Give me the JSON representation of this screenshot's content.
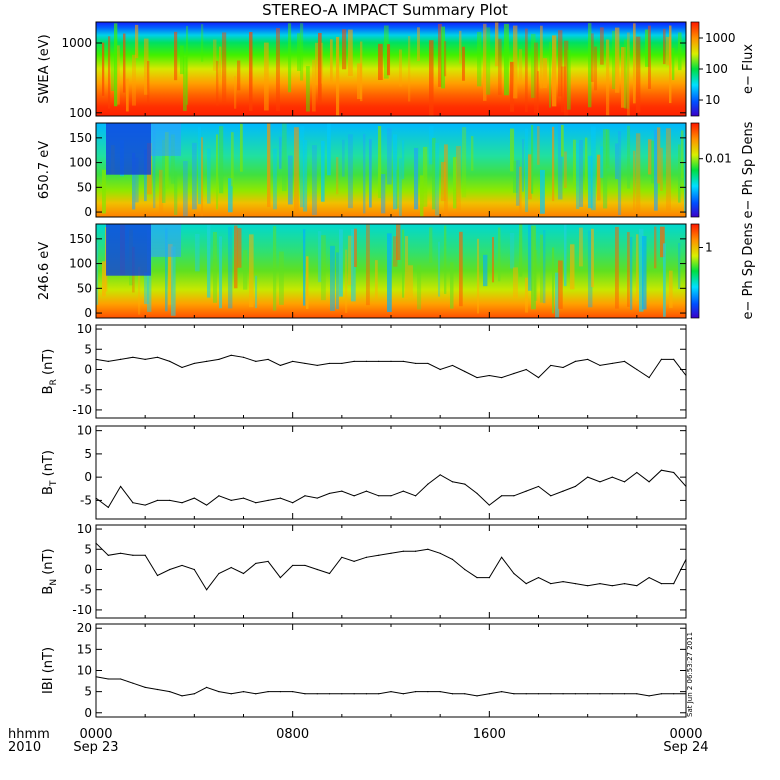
{
  "title": "STEREO-A IMPACT Summary Plot",
  "footer": {
    "time_label": "hhmm",
    "year_label": "2010",
    "x_ticks": [
      "0000",
      "0800",
      "1600",
      "0000"
    ],
    "x_dates": [
      "Sep 23",
      "",
      "",
      "Sep 24"
    ],
    "timestamp": "Sat Jun  2 06:53:27 2011"
  },
  "colors": {
    "line": "#000000",
    "frame": "#000000",
    "background": "#ffffff"
  },
  "chart_data": [
    {
      "type": "heatmap",
      "ylabel": "SWEA (eV)",
      "colorbar_label": "e− Flux",
      "y_scale": "log",
      "ylim": [
        90,
        2000
      ],
      "y_ticks": [
        {
          "v": 100,
          "label": "100"
        },
        {
          "v": 1000,
          "label": "1000"
        }
      ],
      "colorbar_ticks": [
        "10",
        "100",
        "1000"
      ],
      "colorbar_ticks_pos": [
        0.17,
        0.5,
        0.83
      ],
      "description_bands": [
        {
          "energy": 1800,
          "flux_level": 0.15
        },
        {
          "energy": 1000,
          "flux_level": 0.32
        },
        {
          "energy": 500,
          "flux_level": 0.55
        },
        {
          "energy": 250,
          "flux_level": 0.75
        },
        {
          "energy": 100,
          "flux_level": 0.92
        }
      ]
    },
    {
      "type": "heatmap",
      "ylabel": "650.7 eV",
      "colorbar_label": "e− Ph Sp Dens",
      "ylim": [
        -10,
        180
      ],
      "y_ticks": [
        {
          "v": 0,
          "label": "0"
        },
        {
          "v": 50,
          "label": "50"
        },
        {
          "v": 100,
          "label": "100"
        },
        {
          "v": 150,
          "label": "150"
        }
      ],
      "colorbar_ticks": [
        "0.01"
      ],
      "colorbar_ticks_pos": [
        0.62
      ]
    },
    {
      "type": "heatmap",
      "ylabel": "246.6 eV",
      "colorbar_label": "e− Ph Sp Dens",
      "ylim": [
        -10,
        180
      ],
      "y_ticks": [
        {
          "v": 0,
          "label": "0"
        },
        {
          "v": 50,
          "label": "50"
        },
        {
          "v": 100,
          "label": "100"
        },
        {
          "v": 150,
          "label": "150"
        }
      ],
      "colorbar_ticks": [
        "1"
      ],
      "colorbar_ticks_pos": [
        0.75
      ]
    },
    {
      "type": "line",
      "ylabel": "B_R (nT)",
      "ylim": [
        -12,
        11
      ],
      "y_ticks": [
        {
          "v": -10,
          "label": "-10"
        },
        {
          "v": -5,
          "label": "-5"
        },
        {
          "v": 0,
          "label": "0"
        },
        {
          "v": 5,
          "label": "5"
        },
        {
          "v": 10,
          "label": "10"
        }
      ],
      "x_hours": [
        0,
        0.5,
        1,
        1.5,
        2,
        2.5,
        3,
        3.5,
        4,
        4.5,
        5,
        5.5,
        6,
        6.5,
        7,
        7.5,
        8,
        8.5,
        9,
        9.5,
        10,
        10.5,
        11,
        11.5,
        12,
        12.5,
        13,
        13.5,
        14,
        14.5,
        15,
        15.5,
        16,
        16.5,
        17,
        17.5,
        18,
        18.5,
        19,
        19.5,
        20,
        20.5,
        21,
        21.5,
        22,
        22.5,
        23,
        23.5,
        24
      ],
      "values": [
        2.5,
        2,
        2.5,
        3,
        2.5,
        3,
        2,
        0.5,
        1.5,
        2,
        2.5,
        3.5,
        3,
        2,
        2.5,
        1,
        2,
        1.5,
        1,
        1.5,
        1.5,
        2,
        2,
        2,
        2,
        2,
        1.5,
        1.5,
        0,
        1,
        -0.5,
        -2,
        -1.5,
        -2,
        -1,
        0,
        -2,
        1,
        0.5,
        2,
        2.5,
        1,
        1.5,
        2,
        0,
        -2,
        2.5,
        2.5,
        -1.5
      ]
    },
    {
      "type": "line",
      "ylabel": "B_T (nT)",
      "ylim": [
        -9,
        11
      ],
      "y_ticks": [
        {
          "v": -5,
          "label": "-5"
        },
        {
          "v": 0,
          "label": "0"
        },
        {
          "v": 5,
          "label": "5"
        },
        {
          "v": 10,
          "label": "10"
        }
      ],
      "x_hours": [
        0,
        0.5,
        1,
        1.5,
        2,
        2.5,
        3,
        3.5,
        4,
        4.5,
        5,
        5.5,
        6,
        6.5,
        7,
        7.5,
        8,
        8.5,
        9,
        9.5,
        10,
        10.5,
        11,
        11.5,
        12,
        12.5,
        13,
        13.5,
        14,
        14.5,
        15,
        15.5,
        16,
        16.5,
        17,
        17.5,
        18,
        18.5,
        19,
        19.5,
        20,
        20.5,
        21,
        21.5,
        22,
        22.5,
        23,
        23.5,
        24
      ],
      "values": [
        -4.5,
        -6.5,
        -2,
        -5.5,
        -6,
        -5,
        -5,
        -5.5,
        -4.5,
        -6,
        -4,
        -5,
        -4.5,
        -5.5,
        -5,
        -4.5,
        -5.5,
        -4,
        -4.5,
        -3.5,
        -3,
        -4,
        -3,
        -4,
        -4,
        -3,
        -4,
        -1.5,
        0.5,
        -1,
        -1.5,
        -3.5,
        -6,
        -4,
        -4,
        -3,
        -2,
        -4,
        -3,
        -2,
        0,
        -1,
        0,
        -1,
        1,
        -1,
        1.5,
        1,
        -2
      ]
    },
    {
      "type": "line",
      "ylabel": "B_N (nT)",
      "ylim": [
        -12,
        11
      ],
      "y_ticks": [
        {
          "v": -10,
          "label": "-10"
        },
        {
          "v": -5,
          "label": "-5"
        },
        {
          "v": 0,
          "label": "0"
        },
        {
          "v": 5,
          "label": "5"
        },
        {
          "v": 10,
          "label": "10"
        }
      ],
      "x_hours": [
        0,
        0.5,
        1,
        1.5,
        2,
        2.5,
        3,
        3.5,
        4,
        4.5,
        5,
        5.5,
        6,
        6.5,
        7,
        7.5,
        8,
        8.5,
        9,
        9.5,
        10,
        10.5,
        11,
        11.5,
        12,
        12.5,
        13,
        13.5,
        14,
        14.5,
        15,
        15.5,
        16,
        16.5,
        17,
        17.5,
        18,
        18.5,
        19,
        19.5,
        20,
        20.5,
        21,
        21.5,
        22,
        22.5,
        23,
        23.5,
        24
      ],
      "values": [
        6.5,
        3.5,
        4,
        3.5,
        3.5,
        -1.5,
        0,
        1,
        0,
        -5,
        -1,
        0.5,
        -1,
        1.5,
        2,
        -2,
        1,
        1,
        0,
        -1,
        3,
        2,
        3,
        3.5,
        4,
        4.5,
        4.5,
        5,
        4,
        2.5,
        0,
        -2,
        -2,
        3,
        -1,
        -3.5,
        -2,
        -3.5,
        -3,
        -3.5,
        -4,
        -3.5,
        -4,
        -3.5,
        -4,
        -2,
        -3.5,
        -3.5,
        2.5
      ]
    },
    {
      "type": "line",
      "ylabel": "IBI (nT)",
      "ylim": [
        -1,
        21
      ],
      "y_ticks": [
        {
          "v": 0,
          "label": "0"
        },
        {
          "v": 5,
          "label": "5"
        },
        {
          "v": 10,
          "label": "10"
        },
        {
          "v": 15,
          "label": "15"
        },
        {
          "v": 20,
          "label": "20"
        }
      ],
      "x_hours": [
        0,
        0.5,
        1,
        1.5,
        2,
        2.5,
        3,
        3.5,
        4,
        4.5,
        5,
        5.5,
        6,
        6.5,
        7,
        7.5,
        8,
        8.5,
        9,
        9.5,
        10,
        10.5,
        11,
        11.5,
        12,
        12.5,
        13,
        13.5,
        14,
        14.5,
        15,
        15.5,
        16,
        16.5,
        17,
        17.5,
        18,
        18.5,
        19,
        19.5,
        20,
        20.5,
        21,
        21.5,
        22,
        22.5,
        23,
        23.5,
        24
      ],
      "values": [
        8.5,
        8,
        8,
        7,
        6,
        5.5,
        5,
        4,
        4.5,
        6,
        5,
        4.5,
        5,
        4.5,
        5,
        5,
        5,
        4.5,
        4.5,
        4.5,
        4.5,
        4.5,
        4.5,
        4.5,
        5,
        4.5,
        5,
        5,
        5,
        4.5,
        4.5,
        4,
        4.5,
        5,
        4.5,
        4.5,
        4.5,
        4.5,
        4.5,
        4.5,
        4.5,
        4.5,
        4.5,
        4.5,
        4.5,
        4,
        4.5,
        4.5,
        4.5
      ]
    }
  ]
}
